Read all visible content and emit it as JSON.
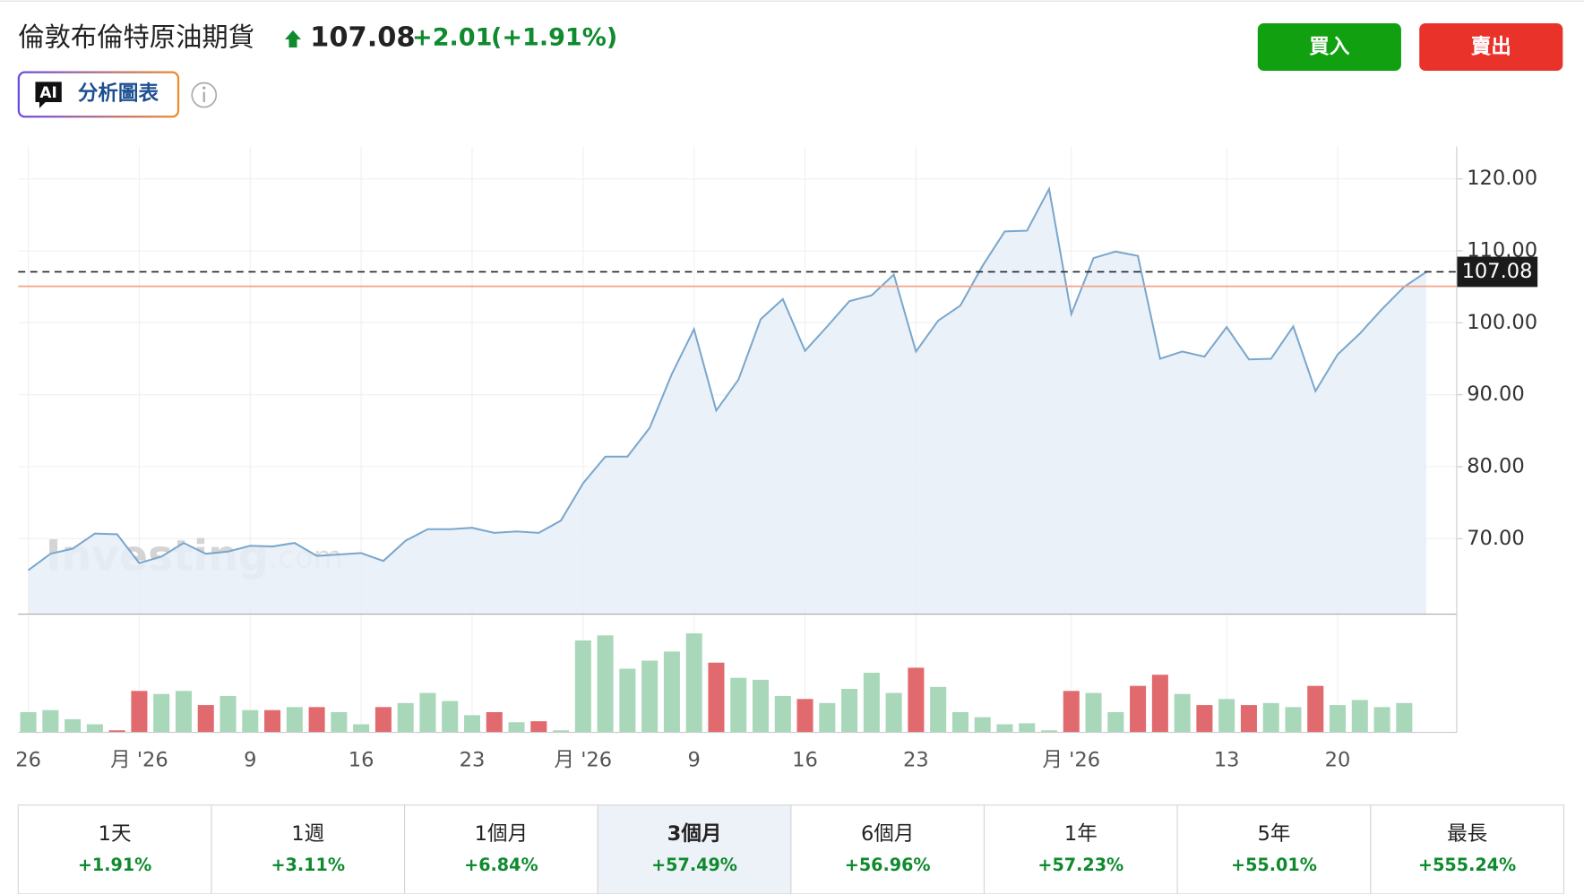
{
  "header": {
    "title": "倫敦布倫特原油期貨",
    "price": "107.08",
    "change": "+2.01",
    "change_percent": "(+1.91%)"
  },
  "ai_button": {
    "badge": "AI",
    "label": "分析圖表"
  },
  "buttons": {
    "buy": "買入",
    "sell": "賣出"
  },
  "chart_data": {
    "type": "line",
    "watermark": {
      "brand": "Investing",
      "suffix": ".com"
    },
    "categories": [
      "26",
      null,
      null,
      null,
      null,
      "月 '26",
      null,
      null,
      null,
      null,
      "9",
      null,
      null,
      null,
      null,
      "16",
      null,
      null,
      null,
      null,
      "23",
      null,
      null,
      null,
      null,
      "月 '26",
      null,
      null,
      null,
      null,
      "9",
      null,
      null,
      null,
      null,
      "16",
      null,
      null,
      null,
      null,
      "23",
      null,
      null,
      null,
      null,
      null,
      null,
      "月 '26",
      null,
      null,
      null,
      null,
      null,
      null,
      "13",
      null,
      null,
      null,
      null,
      "20",
      null,
      null,
      null,
      null
    ],
    "values": [
      65.6,
      67.9,
      68.6,
      70.7,
      70.6,
      66.6,
      67.5,
      69.4,
      67.9,
      68.2,
      69.0,
      68.9,
      69.4,
      67.6,
      67.8,
      68.0,
      66.9,
      69.7,
      71.3,
      71.3,
      71.5,
      70.8,
      71.0,
      70.8,
      72.5,
      77.7,
      81.4,
      81.4,
      85.4,
      92.9,
      99.1,
      87.8,
      92.1,
      100.5,
      103.3,
      96.1,
      99.5,
      103.0,
      103.8,
      106.7,
      96.0,
      100.3,
      102.4,
      107.9,
      112.7,
      112.8,
      118.6,
      101.2,
      109.0,
      109.9,
      109.3,
      95.0,
      96.0,
      95.3,
      99.4,
      94.9,
      95.0,
      99.5,
      90.5,
      95.6,
      98.5,
      101.9,
      105.0,
      107.08
    ],
    "color": "#7aa7cc",
    "area_color": "#e8eef8",
    "volume": [
      20,
      22,
      13,
      8,
      2,
      41,
      38,
      41,
      27,
      36,
      22,
      22,
      25,
      25,
      20,
      8,
      25,
      29,
      39,
      31,
      17,
      20,
      10,
      11,
      2,
      91,
      96,
      63,
      71,
      80,
      98,
      69,
      54,
      52,
      36,
      33,
      29,
      43,
      59,
      39,
      64,
      45,
      20,
      15,
      8,
      9,
      2,
      41,
      39,
      20,
      46,
      57,
      38,
      27,
      33,
      27,
      29,
      25,
      46,
      27,
      32,
      25,
      29,
      null
    ],
    "volume_ylim": [
      0,
      100
    ],
    "up_color": "#a8d8b9",
    "down_color": "#e06a6e",
    "ylim": [
      59.5,
      124.5
    ],
    "yticks": [
      {
        "value": 70,
        "label": "70.00"
      },
      {
        "value": 80,
        "label": "80.00"
      },
      {
        "value": 90,
        "label": "90.00"
      },
      {
        "value": 100,
        "label": "100.00"
      },
      {
        "value": 110,
        "label": "110.00"
      },
      {
        "value": 120,
        "label": "120.00"
      }
    ],
    "last_price": {
      "value": 107.08,
      "label": "107.08"
    },
    "reference_line": 105.07,
    "reference_color": "#f2a38a",
    "grid": true
  },
  "periods": [
    {
      "label": "1天",
      "change": "+1.91%"
    },
    {
      "label": "1週",
      "change": "+3.11%"
    },
    {
      "label": "1個月",
      "change": "+6.84%"
    },
    {
      "label": "3個月",
      "change": "+57.49%",
      "selected": true
    },
    {
      "label": "6個月",
      "change": "+56.96%"
    },
    {
      "label": "1年",
      "change": "+57.23%"
    },
    {
      "label": "5年",
      "change": "+55.01%"
    },
    {
      "label": "最長",
      "change": "+555.24%"
    }
  ]
}
